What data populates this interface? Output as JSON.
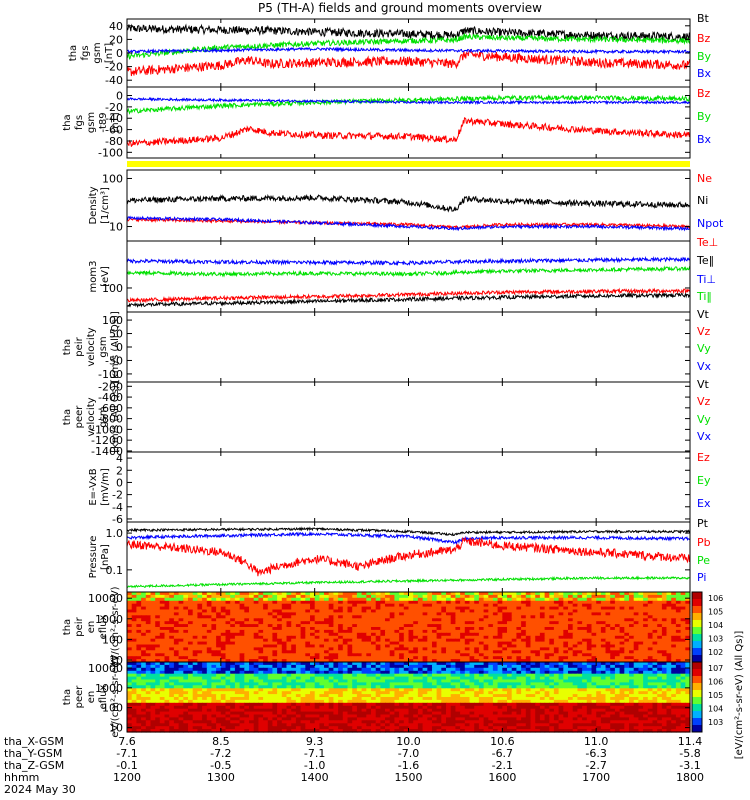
{
  "title": "P5 (TH-A) fields and ground moments overview",
  "colors": {
    "black": "#000000",
    "red": "#ff0000",
    "green": "#00e000",
    "blue": "#0000ff",
    "yellow": "#ffff00"
  },
  "chart_data": {
    "type": "line",
    "x_axis": {
      "ticks": [
        "1200",
        "1300",
        "1400",
        "1500",
        "1600",
        "1700",
        "1800"
      ],
      "xlim": [
        1200,
        1800
      ],
      "extra_rows": [
        {
          "name": "tha_X-GSM",
          "values": [
            "7.6",
            "8.5",
            "9.3",
            "10.0",
            "10.6",
            "11.0",
            "11.4"
          ]
        },
        {
          "name": "tha_Y-GSM",
          "values": [
            "-7.1",
            "-7.2",
            "-7.1",
            "-7.0",
            "-6.7",
            "-6.3",
            "-5.8"
          ]
        },
        {
          "name": "tha_Z-GSM",
          "values": [
            "-0.1",
            "-0.5",
            "-1.0",
            "-1.6",
            "-2.1",
            "-2.7",
            "-3.1"
          ]
        },
        {
          "name": "hhmm",
          "values": []
        },
        {
          "name": "2024 May 30",
          "values": []
        }
      ]
    },
    "panels": [
      {
        "id": "fgs_gsm",
        "ylabel": [
          "tha",
          "fgs",
          "gsm",
          "[nT]"
        ],
        "ylim": [
          -50,
          50
        ],
        "yticks": [
          "40",
          "20",
          "0",
          "-20",
          "-40"
        ],
        "ytick_values": [
          40,
          20,
          0,
          -20,
          -40
        ],
        "log": false,
        "legend": [
          {
            "label": "Bt",
            "color": "black"
          },
          {
            "label": "Bz",
            "color": "red"
          },
          {
            "label": "By",
            "color": "green"
          },
          {
            "label": "Bx",
            "color": "blue"
          }
        ],
        "series": [
          {
            "name": "Bt",
            "color": "black",
            "noise": 6,
            "x": [
              1200,
              1300,
              1350,
              1400,
              1500,
              1550,
              1560,
              1600,
              1700,
              1800
            ],
            "y": [
              36,
              34,
              33,
              31,
              28,
              26,
              33,
              30,
              26,
              24
            ]
          },
          {
            "name": "Bz",
            "color": "red",
            "noise": 7,
            "x": [
              1200,
              1300,
              1330,
              1350,
              1400,
              1500,
              1550,
              1560,
              1600,
              1700,
              1800
            ],
            "y": [
              -28,
              -18,
              -10,
              -16,
              -14,
              -12,
              -16,
              -2,
              -6,
              -14,
              -18
            ]
          },
          {
            "name": "By",
            "color": "green",
            "noise": 4,
            "x": [
              1200,
              1300,
              1400,
              1500,
              1550,
              1560,
              1600,
              1700,
              1800
            ],
            "y": [
              -5,
              8,
              14,
              18,
              19,
              24,
              22,
              20,
              18
            ]
          },
          {
            "name": "Bx",
            "color": "blue",
            "noise": 2,
            "x": [
              1200,
              1300,
              1400,
              1500,
              1600,
              1700,
              1800
            ],
            "y": [
              2,
              4,
              6,
              4,
              3,
              2,
              2
            ]
          }
        ]
      },
      {
        "id": "fgs_gsm_1",
        "ylabel": [
          "tha",
          "fgs",
          "gsm",
          "-t89",
          "[nT]"
        ],
        "ylim": [
          -110,
          15
        ],
        "yticks": [
          "0",
          "-20",
          "-40",
          "-60",
          "-80",
          "-100"
        ],
        "ytick_values": [
          0,
          -20,
          -40,
          -60,
          -80,
          -100
        ],
        "log": false,
        "legend": [
          {
            "label": "Bz",
            "color": "red"
          },
          {
            "label": "By",
            "color": "green"
          },
          {
            "label": "Bx",
            "color": "blue"
          }
        ],
        "series": [
          {
            "name": "Bz",
            "color": "red",
            "noise": 6,
            "x": [
              1200,
              1300,
              1330,
              1350,
              1400,
              1500,
              1550,
              1560,
              1600,
              1700,
              1800
            ],
            "y": [
              -85,
              -75,
              -58,
              -65,
              -70,
              -72,
              -78,
              -44,
              -50,
              -62,
              -70
            ]
          },
          {
            "name": "By",
            "color": "green",
            "noise": 4,
            "x": [
              1200,
              1300,
              1400,
              1500,
              1600,
              1700,
              1800
            ],
            "y": [
              -28,
              -18,
              -12,
              -8,
              -4,
              -4,
              -6
            ]
          },
          {
            "name": "Bx",
            "color": "blue",
            "noise": 2,
            "x": [
              1200,
              1300,
              1400,
              1500,
              1600,
              1700,
              1800
            ],
            "y": [
              -6,
              -8,
              -10,
              -12,
              -12,
              -12,
              -12
            ]
          }
        ]
      },
      {
        "id": "state_bar",
        "ylabel": [],
        "ylim": [
          0,
          1
        ],
        "yticks": [],
        "ytick_values": [],
        "log": false,
        "legend": [],
        "series": []
      },
      {
        "id": "density",
        "ylabel": [
          "Density",
          "[1/cm^3]"
        ],
        "ylim": [
          5,
          150
        ],
        "yticks": [
          "100",
          "10"
        ],
        "ytick_values": [
          100,
          10
        ],
        "log": true,
        "legend": [
          {
            "label": "Ne",
            "color": "red"
          },
          {
            "label": "Ni",
            "color": "black"
          },
          {
            "label": "Npot",
            "color": "blue"
          }
        ],
        "series": [
          {
            "name": "Ni",
            "color": "black",
            "noise": 0.06,
            "x": [
              1200,
              1300,
              1400,
              1500,
              1550,
              1560,
              1600,
              1700,
              1800
            ],
            "y": [
              35,
              38,
              40,
              32,
              22,
              38,
              34,
              30,
              28
            ]
          },
          {
            "name": "Ne",
            "color": "red",
            "noise": 0.03,
            "x": [
              1200,
              1300,
              1400,
              1500,
              1550,
              1600,
              1700,
              1800
            ],
            "y": [
              14,
              13,
              12,
              11,
              9.5,
              11,
              11,
              10
            ]
          },
          {
            "name": "Npot",
            "color": "blue",
            "noise": 0.03,
            "x": [
              1200,
              1300,
              1400,
              1500,
              1550,
              1600,
              1700,
              1800
            ],
            "y": [
              15,
              14,
              12,
              10,
              9,
              10,
              10,
              9
            ]
          }
        ]
      },
      {
        "id": "temp",
        "ylabel": [
          "mom3",
          "[eV]"
        ],
        "ylim": [
          40,
          600
        ],
        "yticks": [
          "100"
        ],
        "ytick_values": [
          100
        ],
        "log": true,
        "legend": [
          {
            "label": "Te⊥",
            "color": "red"
          },
          {
            "label": "Te‖",
            "color": "black"
          },
          {
            "label": "Ti⊥",
            "color": "blue"
          },
          {
            "label": "Ti‖",
            "color": "green"
          }
        ],
        "series": [
          {
            "name": "Ti⊥",
            "color": "blue",
            "noise": 0.03,
            "x": [
              1200,
              1300,
              1400,
              1500,
              1600,
              1700,
              1800
            ],
            "y": [
              280,
              270,
              265,
              260,
              280,
              290,
              300
            ]
          },
          {
            "name": "Ti‖",
            "color": "green",
            "noise": 0.03,
            "x": [
              1200,
              1300,
              1400,
              1500,
              1600,
              1700,
              1800
            ],
            "y": [
              180,
              170,
              175,
              170,
              190,
              200,
              210
            ]
          },
          {
            "name": "Te⊥",
            "color": "red",
            "noise": 0.03,
            "x": [
              1200,
              1300,
              1400,
              1500,
              1600,
              1700,
              1800
            ],
            "y": [
              62,
              68,
              72,
              78,
              85,
              88,
              90
            ]
          },
          {
            "name": "Te‖",
            "color": "black",
            "noise": 0.03,
            "x": [
              1200,
              1300,
              1400,
              1500,
              1600,
              1700,
              1800
            ],
            "y": [
              52,
              56,
              60,
              65,
              70,
              74,
              76
            ]
          }
        ]
      },
      {
        "id": "peir_vel",
        "ylabel": [
          "tha",
          "peir",
          "velocity",
          "gsm",
          "[km/s (All Qs)]"
        ],
        "ylim": [
          -130,
          130
        ],
        "yticks": [
          "100",
          "50",
          "0",
          "-50",
          "-100"
        ],
        "ytick_values": [
          100,
          50,
          0,
          -50,
          -100
        ],
        "log": false,
        "legend": [
          {
            "label": "Vt",
            "color": "black"
          },
          {
            "label": "Vz",
            "color": "red"
          },
          {
            "label": "Vy",
            "color": "green"
          },
          {
            "label": "Vx",
            "color": "blue"
          }
        ],
        "series": []
      },
      {
        "id": "peer_vel",
        "ylabel": [
          "tha",
          "peer",
          "velocity",
          "gsm",
          "[km/s (All Qs)]"
        ],
        "ylim": [
          -1420,
          -120
        ],
        "yticks": [
          "-200",
          "-400",
          "-600",
          "-800",
          "-1000",
          "-1200",
          "-1400"
        ],
        "ytick_values": [
          -200,
          -400,
          -600,
          -800,
          -1000,
          -1200,
          -1400
        ],
        "log": false,
        "legend": [
          {
            "label": "Vt",
            "color": "black"
          },
          {
            "label": "Vz",
            "color": "red"
          },
          {
            "label": "Vy",
            "color": "green"
          },
          {
            "label": "Vx",
            "color": "blue"
          }
        ],
        "series": []
      },
      {
        "id": "efield",
        "ylabel": [
          "E=-VxB",
          "[mV/m]"
        ],
        "ylim": [
          -6.5,
          5
        ],
        "yticks": [
          "4",
          "2",
          "0",
          "-2",
          "-4",
          "-6"
        ],
        "ytick_values": [
          4,
          2,
          0,
          -2,
          -4,
          -6
        ],
        "log": false,
        "legend": [
          {
            "label": "Ez",
            "color": "red"
          },
          {
            "label": "Ey",
            "color": "green"
          },
          {
            "label": "Ex",
            "color": "blue"
          }
        ],
        "series": []
      },
      {
        "id": "pressure",
        "ylabel": [
          "Pressure",
          "[nPa]"
        ],
        "ylim": [
          0.025,
          2.0
        ],
        "yticks": [
          "1.0",
          "0.1"
        ],
        "ytick_values": [
          1,
          0.1
        ],
        "log": true,
        "legend": [
          {
            "label": "Pt",
            "color": "black"
          },
          {
            "label": "Pb",
            "color": "red"
          },
          {
            "label": "Pe",
            "color": "green"
          },
          {
            "label": "Pi",
            "color": "blue"
          }
        ],
        "series": [
          {
            "name": "Pt",
            "color": "black",
            "noise": 0.03,
            "x": [
              1200,
              1300,
              1400,
              1500,
              1550,
              1560,
              1600,
              1700,
              1800
            ],
            "y": [
              1.2,
              1.25,
              1.3,
              1.1,
              0.9,
              1.05,
              1.05,
              1.1,
              1.1
            ]
          },
          {
            "name": "Pi",
            "color": "blue",
            "noise": 0.04,
            "x": [
              1200,
              1300,
              1400,
              1500,
              1550,
              1560,
              1600,
              1700,
              1800
            ],
            "y": [
              0.75,
              0.85,
              0.95,
              0.8,
              0.55,
              0.7,
              0.75,
              0.75,
              0.7
            ]
          },
          {
            "name": "Pb",
            "color": "red",
            "noise": 0.12,
            "x": [
              1200,
              1300,
              1340,
              1400,
              1450,
              1500,
              1550,
              1560,
              1600,
              1700,
              1800
            ],
            "y": [
              0.5,
              0.3,
              0.08,
              0.2,
              0.12,
              0.25,
              0.35,
              0.6,
              0.45,
              0.3,
              0.2
            ]
          },
          {
            "name": "Pe",
            "color": "green",
            "noise": 0.03,
            "x": [
              1200,
              1300,
              1400,
              1500,
              1600,
              1700,
              1800
            ],
            "y": [
              0.035,
              0.04,
              0.045,
              0.05,
              0.055,
              0.06,
              0.06
            ]
          }
        ]
      },
      {
        "id": "peir_eflux",
        "ylabel": [
          "tha",
          "peir",
          "en",
          "eflux",
          "eV/(cm^2-s-sr-eV)"
        ],
        "ylim": [
          8,
          20000
        ],
        "yticks": [
          "10000",
          "1000",
          "100",
          "10"
        ],
        "ytick_values": [
          10000,
          1000,
          100,
          10
        ],
        "log": true,
        "legend": [],
        "series": []
      },
      {
        "id": "peer_eflux",
        "ylabel": [
          "tha",
          "peer",
          "en",
          "eflux",
          "eV/(cm^2-s-sr-eV)"
        ],
        "ylim": [
          6,
          20000
        ],
        "yticks": [
          "10000",
          "1000",
          "100",
          "10"
        ],
        "ytick_values": [
          10000,
          1000,
          100,
          10
        ],
        "log": true,
        "legend": [],
        "series": []
      }
    ],
    "colorbar": {
      "label": "[eV/(cm^2-s-sr-eV) (All Qs)]",
      "ticks": [
        "10^6",
        "10^5",
        "10^4",
        "10^3",
        "10^2",
        "10^7",
        "10^6",
        "10^5",
        "10^4",
        "10^3"
      ]
    }
  }
}
